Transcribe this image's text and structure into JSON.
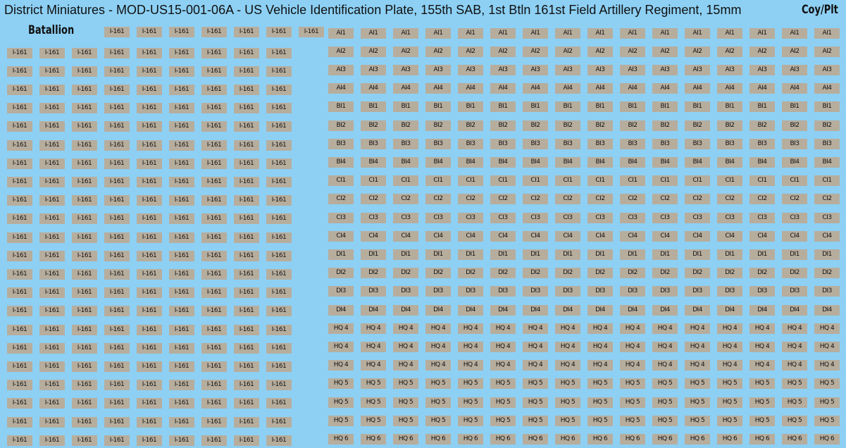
{
  "header": {
    "title": "District Miniatures - MOD-US15-001-06A - US Vehicle Identification Plate, 155th SAB, 1st Btln 161st Field Artillery Regiment, 15mm"
  },
  "battalion": {
    "label": "Batallion",
    "rows": [
      "I-161",
      "I-161",
      "I-161",
      "I-161",
      "I-161",
      "I-161",
      "I-161",
      "I-161",
      "I-161",
      "I-161",
      "I-161",
      "I-161",
      "I-161",
      "I-161",
      "I-161",
      "I-161",
      "I-161",
      "I-161",
      "I-161",
      "I-161",
      "I-161",
      "I-161",
      "I-161"
    ]
  },
  "coy_plt": {
    "label": "Coy/Plt",
    "rows": [
      "AI1",
      "AI2",
      "AI3",
      "AI4",
      "BI1",
      "BI2",
      "BI3",
      "BI4",
      "CI1",
      "CI2",
      "CI3",
      "CI4",
      "DI1",
      "DI2",
      "DI3",
      "DI4",
      "HQ 4",
      "HQ 4",
      "HQ 4",
      "HQ 5",
      "HQ 5",
      "HQ 5",
      "HQ 6"
    ]
  }
}
